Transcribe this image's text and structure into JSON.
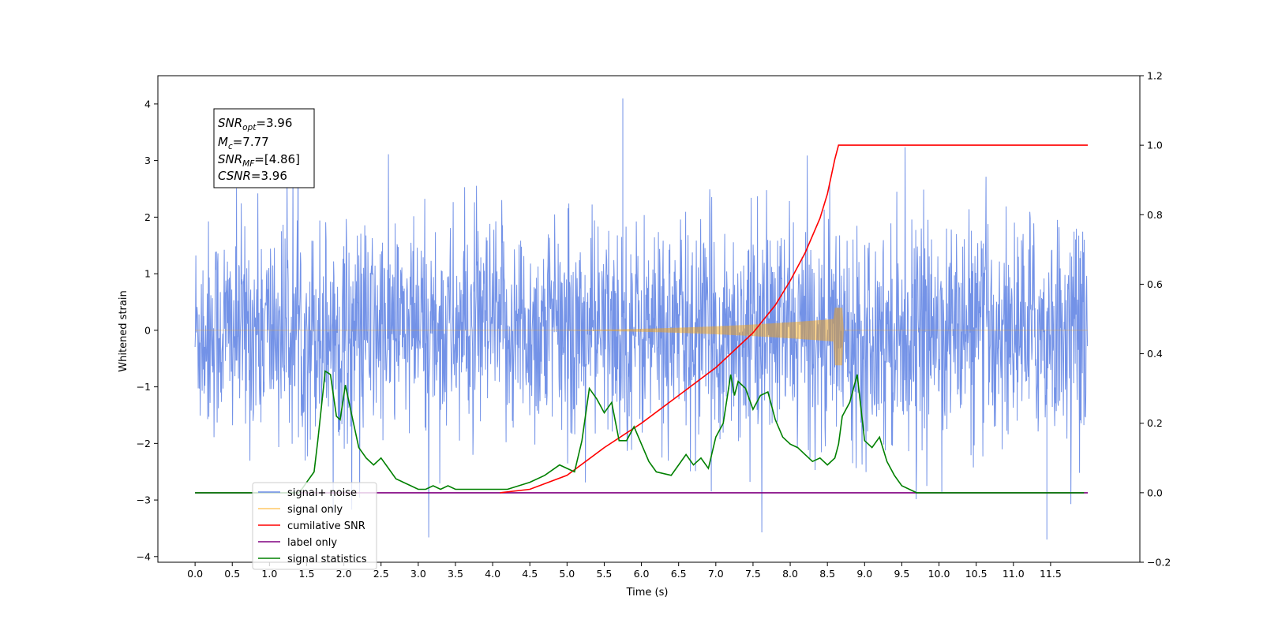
{
  "chart_data": {
    "type": "line",
    "xlabel": "Time (s)",
    "ylabel": "Whitened strain",
    "xlim": [
      -0.5,
      12.7
    ],
    "ylim": [
      -4.1,
      4.5
    ],
    "y2lim": [
      -0.2,
      1.2
    ],
    "x_ticks": [
      "0.0",
      "0.5",
      "1.0",
      "1.5",
      "2.0",
      "2.5",
      "3.0",
      "3.5",
      "4.0",
      "4.5",
      "5.0",
      "5.5",
      "6.0",
      "6.5",
      "7.0",
      "7.5",
      "8.0",
      "8.5",
      "9.0",
      "9.5",
      "10.0",
      "10.5",
      "11.0",
      "11.5"
    ],
    "y_ticks": [
      "4",
      "3",
      "2",
      "1",
      "0",
      "−1",
      "−2",
      "−3",
      "−4"
    ],
    "y2_ticks": [
      "1.2",
      "1.0",
      "0.8",
      "0.6",
      "0.4",
      "0.2",
      "0.0",
      "−0.2"
    ],
    "annotation": {
      "snr_opt_base": "SNR",
      "snr_opt_sub": "opt",
      "snr_opt_value": "=3.96",
      "mc_base": "M",
      "mc_sub": "c",
      "mc_value": "=7.77",
      "snr_mf_base": "SNR",
      "snr_mf_sub": "MF",
      "snr_mf_value": "=[4.86]",
      "csnr_base": "CSNR",
      "csnr_value": "=3.96"
    },
    "legend_position": "lower-left",
    "series": [
      {
        "name": "signal+ noise",
        "color": "#6c8ce6",
        "axis": "left",
        "x_range": [
          0,
          12.0
        ],
        "amplitude_typical": 2.5,
        "extremes": [
          4.1,
          -3.7
        ]
      },
      {
        "name": "signal only",
        "color": "#ffa500",
        "axis": "left",
        "x_range": [
          0,
          8.65
        ],
        "peak_amplitude": [
          0.4,
          -0.62
        ]
      },
      {
        "name": "cumilative SNR",
        "color": "#ff0000",
        "axis": "right",
        "x": [
          4.1,
          4.5,
          5.0,
          5.5,
          6.0,
          6.5,
          7.0,
          7.5,
          7.8,
          8.0,
          8.2,
          8.4,
          8.5,
          8.6,
          8.65,
          12.0
        ],
        "y": [
          0.0,
          0.01,
          0.05,
          0.13,
          0.2,
          0.28,
          0.36,
          0.46,
          0.54,
          0.61,
          0.69,
          0.79,
          0.86,
          0.96,
          1.0,
          1.0
        ]
      },
      {
        "name": "label only",
        "color": "#800080",
        "axis": "right",
        "x": [
          0,
          12.0
        ],
        "y": [
          0.0,
          0.0
        ]
      },
      {
        "name": "signal statistics",
        "color": "#008000",
        "axis": "right",
        "x": [
          0,
          1.0,
          1.2,
          1.4,
          1.5,
          1.6,
          1.65,
          1.75,
          1.82,
          1.9,
          1.95,
          2.02,
          2.1,
          2.2,
          2.3,
          2.4,
          2.5,
          2.6,
          2.7,
          2.8,
          2.9,
          3.0,
          3.1,
          3.2,
          3.3,
          3.4,
          3.5,
          3.6,
          3.8,
          4.0,
          4.2,
          4.5,
          4.7,
          4.9,
          5.0,
          5.1,
          5.2,
          5.3,
          5.4,
          5.5,
          5.6,
          5.7,
          5.8,
          5.9,
          6.0,
          6.1,
          6.2,
          6.4,
          6.5,
          6.6,
          6.7,
          6.8,
          6.9,
          7.0,
          7.1,
          7.2,
          7.25,
          7.3,
          7.4,
          7.5,
          7.6,
          7.7,
          7.8,
          7.9,
          8.0,
          8.1,
          8.2,
          8.3,
          8.4,
          8.5,
          8.6,
          8.65,
          8.7,
          8.8,
          8.9,
          9.0,
          9.1,
          9.2,
          9.3,
          9.4,
          9.5,
          9.7,
          10.0,
          11.0,
          11.95
        ],
        "y": [
          0.0,
          0.0,
          0.0,
          0.0,
          0.03,
          0.06,
          0.15,
          0.35,
          0.34,
          0.22,
          0.21,
          0.31,
          0.23,
          0.13,
          0.1,
          0.08,
          0.1,
          0.07,
          0.04,
          0.03,
          0.02,
          0.01,
          0.01,
          0.02,
          0.01,
          0.02,
          0.01,
          0.01,
          0.01,
          0.01,
          0.01,
          0.03,
          0.05,
          0.08,
          0.07,
          0.06,
          0.15,
          0.3,
          0.27,
          0.23,
          0.26,
          0.15,
          0.15,
          0.19,
          0.14,
          0.09,
          0.06,
          0.05,
          0.08,
          0.11,
          0.08,
          0.1,
          0.07,
          0.16,
          0.2,
          0.34,
          0.28,
          0.32,
          0.3,
          0.24,
          0.28,
          0.29,
          0.21,
          0.16,
          0.14,
          0.13,
          0.11,
          0.09,
          0.1,
          0.08,
          0.1,
          0.14,
          0.22,
          0.26,
          0.34,
          0.15,
          0.13,
          0.16,
          0.09,
          0.05,
          0.02,
          0.0,
          0.0,
          0.0,
          0.0
        ]
      }
    ]
  }
}
